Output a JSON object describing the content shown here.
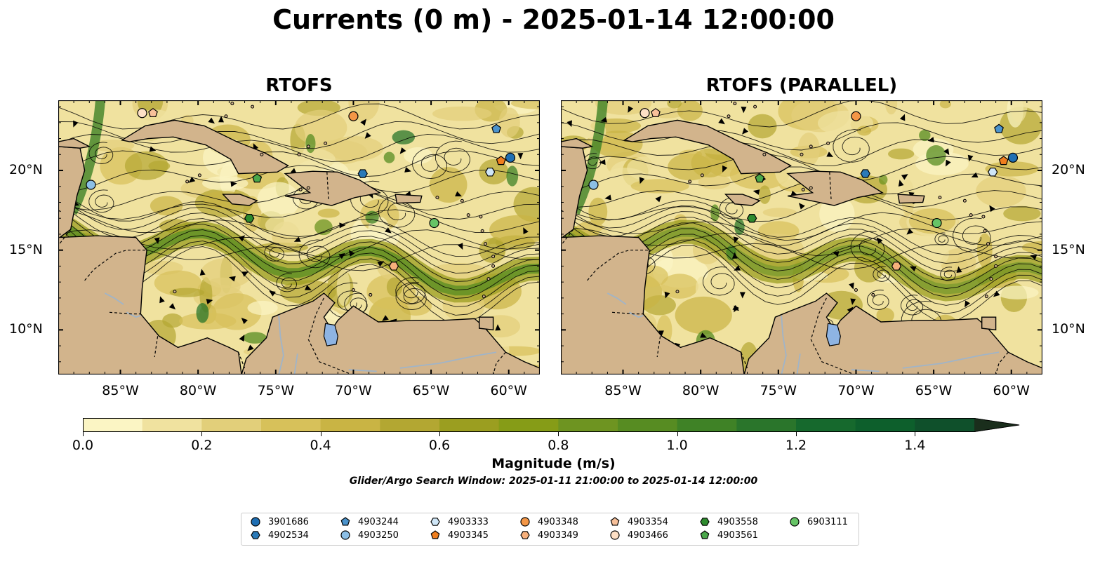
{
  "title": "Currents (0 m) - 2025-01-14 12:00:00",
  "panels": [
    {
      "title": "RTOFS"
    },
    {
      "title": "RTOFS (PARALLEL)"
    }
  ],
  "map": {
    "lon_range": [
      -89,
      -58
    ],
    "lat_range": [
      7.2,
      24.4
    ],
    "lon_ticks": [
      "85°W",
      "80°W",
      "75°W",
      "70°W",
      "65°W",
      "60°W"
    ],
    "lat_ticks": [
      "20°N",
      "15°N",
      "10°N"
    ],
    "colors": {
      "land": "#d2b48c",
      "lake": "#8eb4e3",
      "river": "#a0b4c8",
      "ocean_low": "#fbf5c4"
    }
  },
  "colorbar": {
    "label": "Magnitude (m/s)",
    "ticks": [
      "0.0",
      "0.2",
      "0.4",
      "0.6",
      "0.8",
      "1.0",
      "1.2",
      "1.4"
    ],
    "colors": [
      "#fbf5c4",
      "#f0e29f",
      "#e2cf7a",
      "#d7c15a",
      "#c9b444",
      "#b3a732",
      "#9b9e20",
      "#869c17",
      "#6e9421",
      "#578c22",
      "#3f8226",
      "#2a752b",
      "#16692d",
      "#0d5f2c",
      "#0f502b",
      "#153d26",
      "#1a2e1c"
    ]
  },
  "search_window": "Glider/Argo Search Window: 2025-01-11 21:00:00 to 2025-01-14 12:00:00",
  "floats": [
    {
      "id": "3901686",
      "marker": "circle",
      "color": "#1f6fb4",
      "lon": -59.9,
      "lat": 20.8
    },
    {
      "id": "4902534",
      "marker": "hexagon",
      "color": "#2a7ab8",
      "lon": -69.4,
      "lat": 19.8
    },
    {
      "id": "4903244",
      "marker": "pentagon",
      "color": "#4b93cc",
      "lon": -60.8,
      "lat": 22.6
    },
    {
      "id": "4903250",
      "marker": "circle",
      "color": "#8cbfe6",
      "lon": -86.9,
      "lat": 19.1
    },
    {
      "id": "4903333",
      "marker": "hexagon",
      "color": "#cfe6f7",
      "lon": -61.2,
      "lat": 19.9
    },
    {
      "id": "4903345",
      "marker": "pentagon",
      "color": "#ef7e1e",
      "lon": -60.5,
      "lat": 20.6
    },
    {
      "id": "4903348",
      "marker": "circle",
      "color": "#f39646",
      "lon": -70.0,
      "lat": 23.4
    },
    {
      "id": "4903349",
      "marker": "hexagon",
      "color": "#f7b07b",
      "lon": -67.4,
      "lat": 14.0
    },
    {
      "id": "4903354",
      "marker": "pentagon",
      "color": "#f7c09a",
      "lon": -82.9,
      "lat": 23.6
    },
    {
      "id": "4903466",
      "marker": "circle",
      "color": "#fde0c6",
      "lon": -83.6,
      "lat": 23.6
    },
    {
      "id": "4903558",
      "marker": "hexagon",
      "color": "#2e8b2e",
      "lon": -76.7,
      "lat": 17.0
    },
    {
      "id": "4903561",
      "marker": "pentagon",
      "color": "#4aa74a",
      "lon": -76.2,
      "lat": 19.5
    },
    {
      "id": "6903111",
      "marker": "circle",
      "color": "#66c466",
      "lon": -64.8,
      "lat": 16.7
    }
  ]
}
